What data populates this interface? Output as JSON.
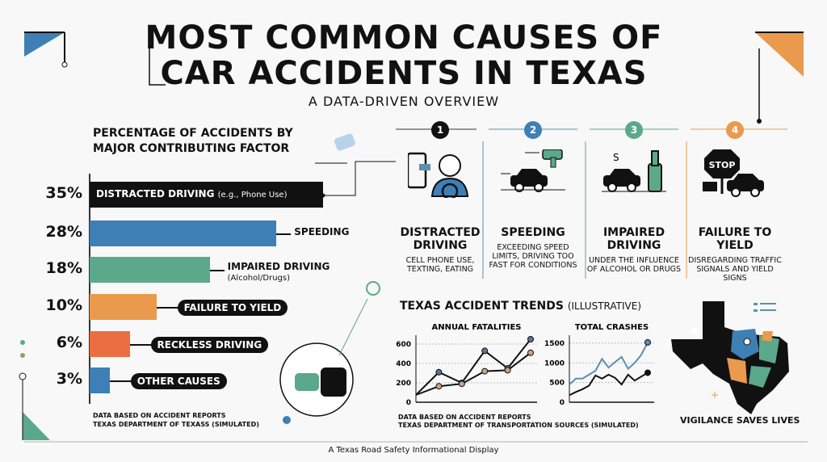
{
  "title_line1": "MOST COMMON CAUSES OF",
  "title_line2": "CAR ACCIDENTS IN TEXAS",
  "subtitle": "A DATA-DRIVEN OVERVIEW",
  "footer": "A Texas Road Safety Informational Display",
  "colors": {
    "black": "#111111",
    "blue": "#3e7fb5",
    "green": "#5ba88a",
    "orange": "#e99a4c",
    "red": "#ea6e3f",
    "teal_blue": "#5b8fb0",
    "tan": "#c9a28a"
  },
  "chart_data": [
    {
      "type": "bar",
      "orientation": "horizontal",
      "title": "PERCENTAGE OF ACCIDENTS BY MAJOR CONTRIBUTING FACTOR",
      "categories": [
        "DISTRACTED DRIVING",
        "SPEEDING",
        "IMPAIRED DRIVING",
        "FAILURE TO YIELD",
        "RECKLESS DRIVING",
        "OTHER CAUSES"
      ],
      "notes": [
        "(e.g., Phone Use)",
        "",
        "(Alcohol/Drugs)",
        "",
        "",
        ""
      ],
      "values": [
        35,
        28,
        18,
        10,
        6,
        3
      ],
      "value_labels": [
        "35%",
        "28%",
        "18%",
        "10%",
        "6%",
        "3%"
      ],
      "bar_colors": [
        "#111111",
        "#3e7fb5",
        "#5ba88a",
        "#e99a4c",
        "#ea6e3f",
        "#3e7fb5"
      ],
      "source": [
        "DATA BASED ON ACCIDENT REPORTS",
        "TEXAS DEPARTMENT OF TEXASS (SIMULATED)"
      ]
    },
    {
      "type": "line",
      "title": "ANNUAL FATALITIES",
      "ylim": [
        0,
        650
      ],
      "yticks": [
        0,
        200,
        400,
        600
      ],
      "series": [
        {
          "color": "#111111",
          "marker": "#5b7690",
          "values": [
            75,
            310,
            200,
            530,
            350,
            650
          ]
        },
        {
          "color": "#111111",
          "marker": "#c9a28a",
          "values": [
            75,
            165,
            190,
            320,
            330,
            510
          ]
        }
      ]
    },
    {
      "type": "line",
      "title": "TOTAL CRASHES",
      "ylim": [
        0,
        1600
      ],
      "yticks": [
        0,
        500,
        1000,
        1500
      ],
      "series": [
        {
          "color": "#5b8fb0",
          "values": [
            450,
            600,
            600,
            700,
            800,
            1100,
            880,
            1020,
            1150,
            850,
            1000,
            1200,
            1520
          ]
        },
        {
          "color": "#111111",
          "values": [
            180,
            260,
            330,
            420,
            680,
            600,
            700,
            620,
            450,
            700,
            550,
            650,
            750
          ]
        }
      ]
    }
  ],
  "trends": {
    "title": "TEXAS ACCIDENT TRENDS",
    "title_note": "(ILLUSTRATIVE)",
    "source": [
      "DATA BASED ON ACCIDENT REPORTS",
      "TEXAS DEPARTMENT OF TRANSPORTATION SOURCES (SIMULATED)"
    ]
  },
  "causes": [
    {
      "num": "1",
      "title": "DISTRACTED DRIVING",
      "desc": "CELL PHONE USE, TEXTING, EATING",
      "color": "#111111",
      "icon": "phone-driver-icon"
    },
    {
      "num": "2",
      "title": "SPEEDING",
      "desc": "EXCEEDING SPEED LIMITS, DRIVING TOO FAST FOR CONDITIONS",
      "color": "#3e7fb5",
      "icon": "speed-radar-car-icon"
    },
    {
      "num": "3",
      "title": "IMPAIRED DRIVING",
      "desc": "UNDER THE INFLUENCE OF ALCOHOL OR DRUGS",
      "color": "#5ba88a",
      "icon": "car-bottle-icon"
    },
    {
      "num": "4",
      "title": "FAILURE TO YIELD",
      "desc": "DISREGARDING TRAFFIC SIGNALS AND YIELD SIGNS",
      "color": "#e99a4c",
      "icon": "stop-sign-icon",
      "sign_text": "STOP"
    }
  ],
  "map_caption": "VIGILANCE SAVES LIVES"
}
